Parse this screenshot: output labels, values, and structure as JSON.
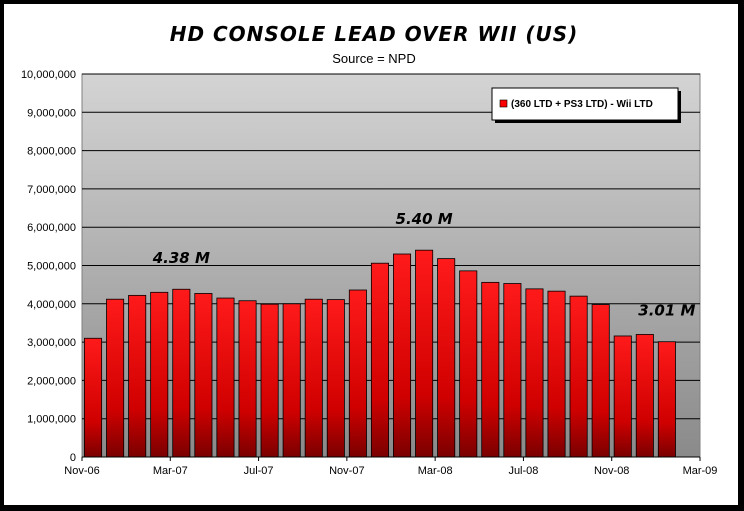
{
  "chart_data": {
    "type": "bar",
    "title": "HD CONSOLE LEAD OVER WII (US)",
    "subtitle": "Source = NPD",
    "xlabel": "",
    "ylabel": "",
    "ylim": [
      0,
      10000000
    ],
    "y_ticks": [
      "0",
      "1,000,000",
      "2,000,000",
      "3,000,000",
      "4,000,000",
      "5,000,000",
      "6,000,000",
      "7,000,000",
      "8,000,000",
      "9,000,000",
      "10,000,000"
    ],
    "x_ticks": [
      "Nov-06",
      "Mar-07",
      "Jul-07",
      "Nov-07",
      "Mar-08",
      "Jul-08",
      "Nov-08",
      "Mar-09"
    ],
    "grid": true,
    "legend_position": "top-right",
    "colors": {
      "bar": "#ff0000",
      "bar_dark": "#7a0000",
      "plot_top": "#d4d4d4",
      "plot_bottom": "#8a8a8a"
    },
    "series": [
      {
        "name": "(360 LTD + PS3 LTD) - Wii LTD",
        "values": [
          3100000,
          4120000,
          4220000,
          4300000,
          4380000,
          4270000,
          4150000,
          4080000,
          3990000,
          4000000,
          4120000,
          4110000,
          4360000,
          5060000,
          5300000,
          5400000,
          5180000,
          4860000,
          4560000,
          4530000,
          4390000,
          4330000,
          4200000,
          3980000,
          3160000,
          3200000,
          3010000
        ]
      }
    ],
    "annotations": [
      {
        "text": "4.38 M",
        "index": 4
      },
      {
        "text": "5.40 M",
        "index": 15
      },
      {
        "text": "3.01 M",
        "index": 26
      }
    ]
  }
}
